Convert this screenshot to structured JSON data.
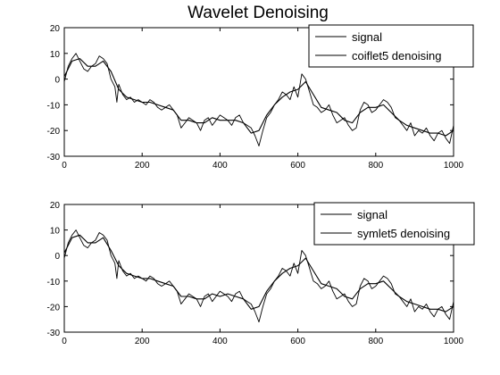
{
  "title": "Wavelet Denoising",
  "chart_data": [
    {
      "type": "line",
      "title": "Wavelet Denoising",
      "xlabel": "",
      "ylabel": "",
      "xlim": [
        0,
        1000
      ],
      "ylim": [
        -30,
        20
      ],
      "xticks": [
        0,
        200,
        400,
        600,
        800,
        1000
      ],
      "yticks": [
        -30,
        -20,
        -10,
        0,
        10,
        20
      ],
      "grid": false,
      "legend_position": "top-right",
      "series": [
        {
          "name": "signal",
          "color": "#000000",
          "x": [
            0,
            10,
            20,
            30,
            40,
            50,
            60,
            70,
            80,
            90,
            100,
            110,
            120,
            130,
            135,
            140,
            150,
            160,
            170,
            180,
            190,
            200,
            210,
            220,
            230,
            240,
            250,
            260,
            270,
            280,
            290,
            300,
            310,
            320,
            330,
            340,
            350,
            360,
            370,
            380,
            390,
            400,
            410,
            420,
            430,
            440,
            450,
            460,
            470,
            480,
            490,
            500,
            510,
            520,
            530,
            540,
            550,
            560,
            570,
            580,
            590,
            600,
            610,
            620,
            630,
            640,
            650,
            660,
            670,
            680,
            690,
            700,
            710,
            720,
            730,
            740,
            750,
            760,
            770,
            780,
            790,
            800,
            810,
            820,
            830,
            840,
            850,
            860,
            870,
            880,
            890,
            900,
            910,
            920,
            930,
            940,
            950,
            960,
            970,
            980,
            990,
            1000
          ],
          "y": [
            -1,
            5,
            8,
            10,
            7,
            4,
            3,
            5,
            6,
            9,
            8,
            6,
            0,
            -3,
            -9,
            -2,
            -6,
            -8,
            -7,
            -9,
            -8,
            -9,
            -10,
            -8,
            -9,
            -11,
            -12,
            -11,
            -10,
            -12,
            -14,
            -19,
            -17,
            -15,
            -16,
            -17,
            -20,
            -16,
            -15,
            -18,
            -16,
            -14,
            -15,
            -16,
            -18,
            -15,
            -14,
            -17,
            -18,
            -19,
            -22,
            -26,
            -20,
            -15,
            -13,
            -10,
            -8,
            -5,
            -6,
            -8,
            -3,
            -7,
            2,
            0,
            -5,
            -10,
            -11,
            -13,
            -12,
            -10,
            -14,
            -17,
            -16,
            -15,
            -18,
            -20,
            -19,
            -12,
            -9,
            -10,
            -13,
            -12,
            -10,
            -8,
            -9,
            -11,
            -15,
            -16,
            -18,
            -20,
            -17,
            -22,
            -20,
            -21,
            -19,
            -22,
            -24,
            -21,
            -20,
            -23,
            -25,
            -18
          ]
        },
        {
          "name": "coiflet5 denoising",
          "color": "#000000",
          "x": [
            0,
            20,
            40,
            60,
            80,
            100,
            120,
            140,
            160,
            180,
            200,
            220,
            240,
            260,
            280,
            300,
            320,
            340,
            360,
            380,
            400,
            420,
            440,
            460,
            480,
            500,
            520,
            540,
            560,
            580,
            600,
            620,
            640,
            660,
            680,
            700,
            720,
            740,
            760,
            780,
            800,
            820,
            840,
            860,
            880,
            900,
            920,
            940,
            960,
            980,
            1000
          ],
          "y": [
            1,
            7,
            8,
            5,
            5,
            7,
            3,
            -4,
            -7,
            -8,
            -9,
            -9,
            -10,
            -11,
            -12,
            -16,
            -16,
            -17,
            -17,
            -15,
            -16,
            -16,
            -16,
            -17,
            -21,
            -20,
            -14,
            -10,
            -7,
            -5,
            -4,
            -1,
            -6,
            -11,
            -12,
            -13,
            -16,
            -17,
            -13,
            -11,
            -11,
            -10,
            -13,
            -16,
            -18,
            -19,
            -20,
            -21,
            -21,
            -22,
            -20
          ]
        }
      ]
    },
    {
      "type": "line",
      "title": "",
      "xlabel": "",
      "ylabel": "",
      "xlim": [
        0,
        1000
      ],
      "ylim": [
        -30,
        20
      ],
      "xticks": [
        0,
        200,
        400,
        600,
        800,
        1000
      ],
      "yticks": [
        -30,
        -20,
        -10,
        0,
        10,
        20
      ],
      "grid": false,
      "legend_position": "top-right",
      "series": [
        {
          "name": "signal",
          "color": "#000000",
          "x": [
            0,
            10,
            20,
            30,
            40,
            50,
            60,
            70,
            80,
            90,
            100,
            110,
            120,
            130,
            135,
            140,
            150,
            160,
            170,
            180,
            190,
            200,
            210,
            220,
            230,
            240,
            250,
            260,
            270,
            280,
            290,
            300,
            310,
            320,
            330,
            340,
            350,
            360,
            370,
            380,
            390,
            400,
            410,
            420,
            430,
            440,
            450,
            460,
            470,
            480,
            490,
            500,
            510,
            520,
            530,
            540,
            550,
            560,
            570,
            580,
            590,
            600,
            610,
            620,
            630,
            640,
            650,
            660,
            670,
            680,
            690,
            700,
            710,
            720,
            730,
            740,
            750,
            760,
            770,
            780,
            790,
            800,
            810,
            820,
            830,
            840,
            850,
            860,
            870,
            880,
            890,
            900,
            910,
            920,
            930,
            940,
            950,
            960,
            970,
            980,
            990,
            1000
          ],
          "y": [
            -1,
            5,
            8,
            10,
            7,
            4,
            3,
            5,
            6,
            9,
            8,
            6,
            0,
            -3,
            -9,
            -2,
            -6,
            -8,
            -7,
            -9,
            -8,
            -9,
            -10,
            -8,
            -9,
            -11,
            -12,
            -11,
            -10,
            -12,
            -14,
            -19,
            -17,
            -15,
            -16,
            -17,
            -20,
            -16,
            -15,
            -18,
            -16,
            -14,
            -15,
            -16,
            -18,
            -15,
            -14,
            -17,
            -18,
            -19,
            -22,
            -26,
            -20,
            -15,
            -13,
            -10,
            -8,
            -5,
            -6,
            -8,
            -3,
            -7,
            2,
            0,
            -5,
            -10,
            -11,
            -13,
            -12,
            -10,
            -14,
            -17,
            -16,
            -15,
            -18,
            -20,
            -19,
            -12,
            -9,
            -10,
            -13,
            -12,
            -10,
            -8,
            -9,
            -11,
            -15,
            -16,
            -18,
            -20,
            -17,
            -22,
            -20,
            -21,
            -19,
            -22,
            -24,
            -21,
            -20,
            -23,
            -25,
            -18
          ]
        },
        {
          "name": "symlet5 denoising",
          "color": "#000000",
          "x": [
            0,
            20,
            40,
            60,
            80,
            100,
            120,
            140,
            160,
            180,
            200,
            220,
            240,
            260,
            280,
            300,
            320,
            340,
            360,
            380,
            400,
            420,
            440,
            460,
            480,
            500,
            520,
            540,
            560,
            580,
            600,
            620,
            640,
            660,
            680,
            700,
            720,
            740,
            760,
            780,
            800,
            820,
            840,
            860,
            880,
            900,
            920,
            940,
            960,
            980,
            1000
          ],
          "y": [
            1,
            7,
            8,
            5,
            5,
            7,
            2,
            -4,
            -7,
            -8,
            -9,
            -9,
            -10,
            -11,
            -12,
            -16,
            -16,
            -17,
            -17,
            -15,
            -16,
            -15,
            -16,
            -17,
            -21,
            -20,
            -14,
            -10,
            -7,
            -5,
            -4,
            -1,
            -6,
            -11,
            -12,
            -13,
            -16,
            -17,
            -13,
            -11,
            -11,
            -10,
            -13,
            -16,
            -18,
            -19,
            -20,
            -21,
            -21,
            -22,
            -20
          ]
        }
      ]
    }
  ]
}
